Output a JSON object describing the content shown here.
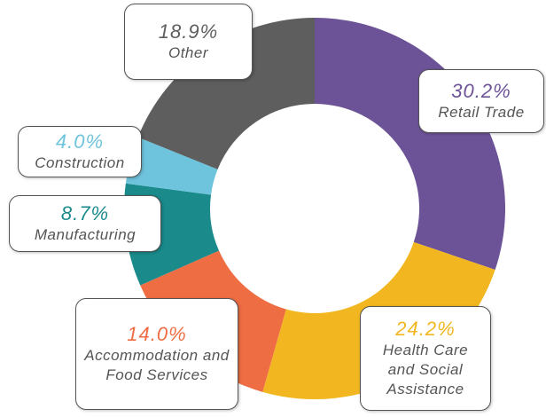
{
  "chart_data": {
    "type": "donut",
    "categories": [
      "Retail Trade",
      "Health Care and Social Assistance",
      "Accommodation and Food Services",
      "Manufacturing",
      "Construction",
      "Other"
    ],
    "values": [
      30.2,
      24.2,
      14.0,
      8.7,
      4.0,
      18.9
    ],
    "value_labels": [
      "30.2%",
      "24.2%",
      "14.0%",
      "8.7%",
      "4.0%",
      "18.9%"
    ],
    "colors": [
      "#6c5397",
      "#f2b720",
      "#ef6d43",
      "#1a8a8b",
      "#6ec4dc",
      "#5e5e5e"
    ]
  }
}
